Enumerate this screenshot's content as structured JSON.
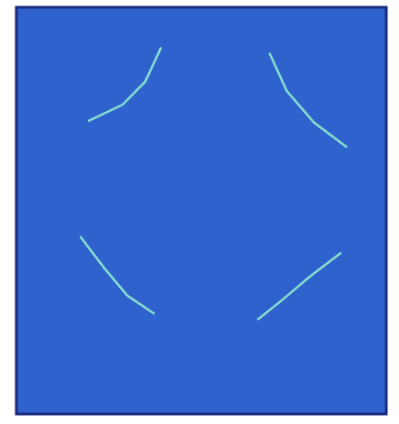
{
  "chart_data": {
    "type": "scatter",
    "marker": "none",
    "line_style": "solid",
    "tick_labels": false,
    "grid": false,
    "xlim": [
      -0.23,
      5.34
    ],
    "ylim": [
      -0.35,
      5.83
    ],
    "xticks": [
      0,
      1,
      2,
      3,
      4,
      5
    ],
    "yticks": [
      0,
      1,
      2,
      3,
      4,
      5
    ],
    "series": [
      {
        "color": "#86e0cf",
        "x": [
          1.95,
          1.71,
          1.37,
          0.85
        ],
        "values": [
          5.22,
          4.7,
          4.35,
          4.1
        ]
      },
      {
        "color": "#86e0cf",
        "x": [
          3.58,
          3.84,
          4.25,
          4.75
        ],
        "values": [
          5.14,
          4.56,
          4.08,
          3.7
        ]
      },
      {
        "color": "#86e0cf",
        "x": [
          0.73,
          1.1,
          1.44,
          1.85
        ],
        "values": [
          2.35,
          1.86,
          1.45,
          1.17
        ]
      },
      {
        "color": "#86e0cf",
        "x": [
          4.66,
          4.18,
          3.77,
          3.4
        ],
        "values": [
          2.1,
          1.73,
          1.38,
          1.08
        ]
      }
    ]
  }
}
